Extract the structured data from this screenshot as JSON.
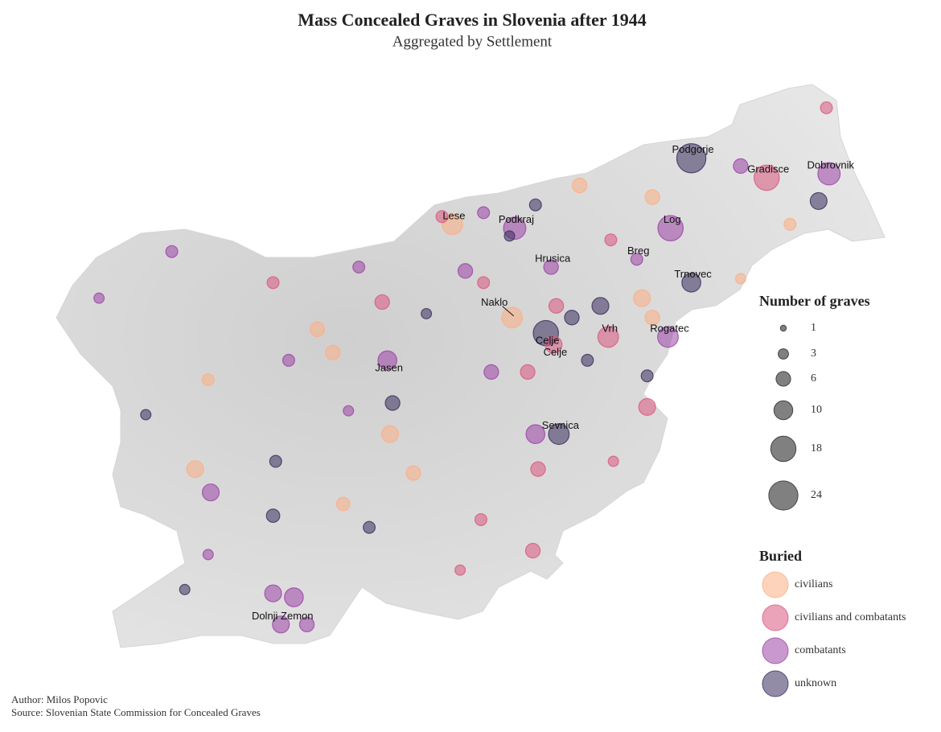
{
  "map": {
    "title": "Mass Concealed Graves in Slovenia after 1944",
    "subtitle": "Aggregated by Settlement",
    "size_legend": {
      "title": "Number of graves",
      "values": [
        1,
        3,
        6,
        10,
        18,
        24
      ]
    },
    "color_legend": {
      "title": "Buried",
      "categories": [
        "civilians",
        "civilians and combatants",
        "combatants",
        "unknown"
      ],
      "colors": [
        "#fcae84",
        "#d9577e",
        "#9a44a6",
        "#3a2e5c"
      ]
    },
    "author": "Author: Milos Popovic",
    "source": "Source: Slovenian State Commission for Concealed Graves",
    "points": [
      {
        "name": "Podgorje",
        "lon": 15.84,
        "lat": 46.69,
        "graves": 24,
        "buried": "unknown"
      },
      {
        "name": "Gradisce",
        "lon": 16.13,
        "lat": 46.64,
        "graves": 18,
        "buried": "civilians and combatants"
      },
      {
        "name": "Dobrovnik",
        "lon": 16.37,
        "lat": 46.65,
        "graves": 14,
        "buried": "combatants"
      },
      {
        "lon": 16.33,
        "lat": 46.58,
        "graves": 8,
        "buried": "unknown"
      },
      {
        "lon": 16.36,
        "lat": 46.82,
        "graves": 4,
        "buried": "civilians and combatants"
      },
      {
        "name": "Log",
        "lon": 15.76,
        "lat": 46.51,
        "graves": 18,
        "buried": "combatants"
      },
      {
        "lon": 16.03,
        "lat": 46.67,
        "graves": 6,
        "buried": "combatants"
      },
      {
        "lon": 15.41,
        "lat": 46.62,
        "graves": 6,
        "buried": "civilians"
      },
      {
        "lon": 15.69,
        "lat": 46.59,
        "graves": 6,
        "buried": "civilians"
      },
      {
        "name": "Lese",
        "lon": 14.92,
        "lat": 46.52,
        "graves": 12,
        "buried": "civilians"
      },
      {
        "name": "Podkraj",
        "lon": 15.16,
        "lat": 46.51,
        "graves": 14,
        "buried": "combatants"
      },
      {
        "lon": 15.24,
        "lat": 46.57,
        "graves": 4,
        "buried": "unknown"
      },
      {
        "lon": 14.88,
        "lat": 46.54,
        "graves": 4,
        "buried": "civilians and combatants"
      },
      {
        "lon": 15.04,
        "lat": 46.55,
        "graves": 4,
        "buried": "combatants"
      },
      {
        "name": "Hrusica",
        "lon": 15.3,
        "lat": 46.41,
        "graves": 6,
        "buried": "combatants"
      },
      {
        "lon": 15.14,
        "lat": 46.49,
        "graves": 3,
        "buried": "unknown"
      },
      {
        "name": "Breg",
        "lon": 15.63,
        "lat": 46.43,
        "graves": 4,
        "buried": "combatants"
      },
      {
        "lon": 15.53,
        "lat": 46.48,
        "graves": 4,
        "buried": "civilians and combatants"
      },
      {
        "name": "Trnovec",
        "lon": 15.84,
        "lat": 46.37,
        "graves": 10,
        "buried": "unknown"
      },
      {
        "lon": 15.65,
        "lat": 46.33,
        "graves": 8,
        "buried": "civilians"
      },
      {
        "lon": 16.03,
        "lat": 46.38,
        "graves": 3,
        "buried": "civilians"
      },
      {
        "name": "Naklo",
        "lon": 15.15,
        "lat": 46.28,
        "graves": 12,
        "buried": "civilians"
      },
      {
        "name": "Celje",
        "lon": 15.28,
        "lat": 46.24,
        "graves": 18,
        "buried": "unknown"
      },
      {
        "name": "Celje",
        "lon": 15.31,
        "lat": 46.21,
        "graves": 8,
        "buried": "civilians and combatants"
      },
      {
        "lon": 15.32,
        "lat": 46.31,
        "graves": 6,
        "buried": "civilians and combatants"
      },
      {
        "lon": 15.38,
        "lat": 46.28,
        "graves": 6,
        "buried": "unknown"
      },
      {
        "lon": 15.49,
        "lat": 46.31,
        "graves": 8,
        "buried": "unknown"
      },
      {
        "name": "Vrh",
        "lon": 15.52,
        "lat": 46.23,
        "graves": 12,
        "buried": "civilians and combatants"
      },
      {
        "name": "Rogatec",
        "lon": 15.75,
        "lat": 46.23,
        "graves": 12,
        "buried": "combatants"
      },
      {
        "lon": 15.69,
        "lat": 46.28,
        "graves": 6,
        "buried": "civilians"
      },
      {
        "name": "Jasen",
        "lon": 14.67,
        "lat": 46.17,
        "graves": 10,
        "buried": "combatants"
      },
      {
        "lon": 14.46,
        "lat": 46.19,
        "graves": 6,
        "buried": "civilians"
      },
      {
        "lon": 14.4,
        "lat": 46.25,
        "graves": 6,
        "buried": "civilians"
      },
      {
        "lon": 14.29,
        "lat": 46.17,
        "graves": 4,
        "buried": "combatants"
      },
      {
        "lon": 14.65,
        "lat": 46.32,
        "graves": 6,
        "buried": "civilians and combatants"
      },
      {
        "lon": 14.82,
        "lat": 46.29,
        "graves": 3,
        "buried": "unknown"
      },
      {
        "lon": 14.56,
        "lat": 46.41,
        "graves": 4,
        "buried": "combatants"
      },
      {
        "lon": 13.84,
        "lat": 46.45,
        "graves": 4,
        "buried": "combatants"
      },
      {
        "lon": 14.23,
        "lat": 46.37,
        "graves": 4,
        "buried": "civilians and combatants"
      },
      {
        "lon": 13.56,
        "lat": 46.33,
        "graves": 3,
        "buried": "combatants"
      },
      {
        "lon": 13.98,
        "lat": 46.12,
        "graves": 4,
        "buried": "civilians"
      },
      {
        "lon": 13.93,
        "lat": 45.89,
        "graves": 8,
        "buried": "civilians"
      },
      {
        "lon": 13.99,
        "lat": 45.83,
        "graves": 8,
        "buried": "combatants"
      },
      {
        "lon": 13.74,
        "lat": 46.03,
        "graves": 3,
        "buried": "unknown"
      },
      {
        "lon": 14.24,
        "lat": 45.91,
        "graves": 4,
        "buried": "unknown"
      },
      {
        "lon": 14.69,
        "lat": 46.06,
        "graves": 6,
        "buried": "unknown"
      },
      {
        "lon": 14.68,
        "lat": 45.98,
        "graves": 8,
        "buried": "civilians"
      },
      {
        "lon": 14.77,
        "lat": 45.88,
        "graves": 6,
        "buried": "civilians"
      },
      {
        "lon": 14.52,
        "lat": 46.04,
        "graves": 3,
        "buried": "combatants"
      },
      {
        "lon": 14.23,
        "lat": 45.77,
        "graves": 5,
        "buried": "unknown"
      },
      {
        "lon": 14.5,
        "lat": 45.8,
        "graves": 5,
        "buried": "civilians"
      },
      {
        "lon": 14.6,
        "lat": 45.74,
        "graves": 4,
        "buried": "unknown"
      },
      {
        "name": "Sevnica",
        "lon": 15.33,
        "lat": 45.98,
        "graves": 12,
        "buried": "unknown"
      },
      {
        "lon": 15.24,
        "lat": 45.98,
        "graves": 10,
        "buried": "combatants"
      },
      {
        "lon": 15.67,
        "lat": 46.05,
        "graves": 8,
        "buried": "civilians and combatants"
      },
      {
        "lon": 15.25,
        "lat": 45.89,
        "graves": 6,
        "buried": "civilians and combatants"
      },
      {
        "lon": 15.07,
        "lat": 46.14,
        "graves": 6,
        "buried": "combatants"
      },
      {
        "lon": 15.21,
        "lat": 46.14,
        "graves": 6,
        "buried": "civilians and combatants"
      },
      {
        "lon": 15.67,
        "lat": 46.13,
        "graves": 4,
        "buried": "unknown"
      },
      {
        "lon": 15.03,
        "lat": 45.76,
        "graves": 4,
        "buried": "civilians and combatants"
      },
      {
        "lon": 15.23,
        "lat": 45.68,
        "graves": 6,
        "buried": "civilians and combatants"
      },
      {
        "lon": 14.95,
        "lat": 45.63,
        "graves": 3,
        "buried": "civilians and combatants"
      },
      {
        "lon": 14.23,
        "lat": 45.57,
        "graves": 8,
        "buried": "combatants"
      },
      {
        "lon": 14.31,
        "lat": 45.56,
        "graves": 10,
        "buried": "combatants"
      },
      {
        "name": "Dolnji Zemon",
        "lon": 14.26,
        "lat": 45.49,
        "graves": 8,
        "buried": "combatants"
      },
      {
        "lon": 14.36,
        "lat": 45.49,
        "graves": 6,
        "buried": "combatants"
      },
      {
        "lon": 13.89,
        "lat": 45.58,
        "graves": 3,
        "buried": "unknown"
      },
      {
        "lon": 13.98,
        "lat": 45.67,
        "graves": 3,
        "buried": "combatants"
      },
      {
        "lon": 14.97,
        "lat": 46.4,
        "graves": 6,
        "buried": "combatants"
      },
      {
        "lon": 15.04,
        "lat": 46.37,
        "graves": 4,
        "buried": "civilians and combatants"
      },
      {
        "lon": 15.44,
        "lat": 46.17,
        "graves": 4,
        "buried": "unknown"
      },
      {
        "lon": 15.54,
        "lat": 45.91,
        "graves": 3,
        "buried": "civilians and combatants"
      },
      {
        "lon": 16.22,
        "lat": 46.52,
        "graves": 4,
        "buried": "civilians"
      }
    ]
  }
}
